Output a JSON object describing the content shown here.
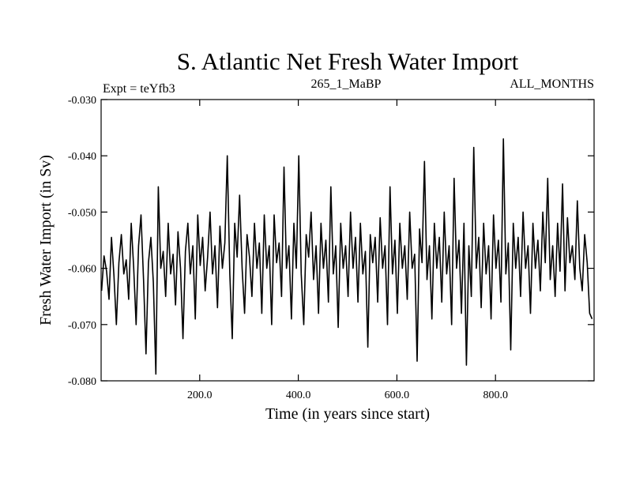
{
  "chart_data": {
    "type": "line",
    "title": "S. Atlantic Net Fresh Water Import",
    "header_left": "Expt = teYfb3",
    "header_center": "265_1_MaBP",
    "header_right": "ALL_MONTHS",
    "xlabel": "Time (in years since start)",
    "ylabel": "Fresh Water Import (in Sv)",
    "xlim": [
      0,
      1000
    ],
    "ylim": [
      -0.08,
      -0.03
    ],
    "xticks": [
      200,
      400,
      600,
      800
    ],
    "xtick_labels": [
      "200.0",
      "400.0",
      "600.0",
      "800.0"
    ],
    "yticks": [
      -0.08,
      -0.07,
      -0.06,
      -0.05,
      -0.04,
      -0.03
    ],
    "ytick_labels": [
      "-0.080",
      "-0.070",
      "-0.060",
      "-0.050",
      "-0.040",
      "-0.030"
    ],
    "series": [
      {
        "name": "Net Fresh Water Import",
        "color": "#000000",
        "x_start": 1,
        "x_step": 5,
        "values": [
          -0.064,
          -0.0578,
          -0.0605,
          -0.0655,
          -0.0545,
          -0.0612,
          -0.07,
          -0.059,
          -0.054,
          -0.061,
          -0.0585,
          -0.0655,
          -0.052,
          -0.0598,
          -0.07,
          -0.056,
          -0.0505,
          -0.062,
          -0.0752,
          -0.059,
          -0.0545,
          -0.0625,
          -0.0788,
          -0.0455,
          -0.06,
          -0.057,
          -0.065,
          -0.052,
          -0.061,
          -0.0575,
          -0.0665,
          -0.0535,
          -0.06,
          -0.0725,
          -0.057,
          -0.052,
          -0.061,
          -0.056,
          -0.069,
          -0.0505,
          -0.0595,
          -0.0545,
          -0.064,
          -0.058,
          -0.05,
          -0.061,
          -0.056,
          -0.067,
          -0.0525,
          -0.06,
          -0.0555,
          -0.04,
          -0.061,
          -0.0725,
          -0.052,
          -0.058,
          -0.047,
          -0.06,
          -0.068,
          -0.054,
          -0.058,
          -0.065,
          -0.052,
          -0.06,
          -0.0555,
          -0.068,
          -0.0505,
          -0.06,
          -0.056,
          -0.07,
          -0.0505,
          -0.059,
          -0.0555,
          -0.065,
          -0.042,
          -0.06,
          -0.056,
          -0.069,
          -0.052,
          -0.06,
          -0.04,
          -0.061,
          -0.07,
          -0.054,
          -0.058,
          -0.05,
          -0.062,
          -0.056,
          -0.068,
          -0.052,
          -0.06,
          -0.055,
          -0.066,
          -0.0455,
          -0.061,
          -0.056,
          -0.0705,
          -0.052,
          -0.06,
          -0.056,
          -0.065,
          -0.05,
          -0.06,
          -0.0545,
          -0.066,
          -0.052,
          -0.061,
          -0.057,
          -0.074,
          -0.054,
          -0.059,
          -0.0545,
          -0.066,
          -0.051,
          -0.06,
          -0.056,
          -0.07,
          -0.0455,
          -0.061,
          -0.055,
          -0.068,
          -0.052,
          -0.06,
          -0.056,
          -0.0655,
          -0.05,
          -0.06,
          -0.0575,
          -0.0765,
          -0.053,
          -0.059,
          -0.041,
          -0.062,
          -0.056,
          -0.069,
          -0.052,
          -0.06,
          -0.0545,
          -0.066,
          -0.05,
          -0.061,
          -0.056,
          -0.07,
          -0.044,
          -0.06,
          -0.055,
          -0.068,
          -0.052,
          -0.0772,
          -0.056,
          -0.065,
          -0.0385,
          -0.06,
          -0.0545,
          -0.067,
          -0.052,
          -0.061,
          -0.056,
          -0.069,
          -0.0505,
          -0.06,
          -0.055,
          -0.066,
          -0.037,
          -0.061,
          -0.0555,
          -0.0745,
          -0.052,
          -0.06,
          -0.0545,
          -0.065,
          -0.05,
          -0.06,
          -0.056,
          -0.068,
          -0.052,
          -0.06,
          -0.055,
          -0.064,
          -0.05,
          -0.059,
          -0.044,
          -0.062,
          -0.056,
          -0.065,
          -0.052,
          -0.0605,
          -0.045,
          -0.064,
          -0.051,
          -0.059,
          -0.056,
          -0.062,
          -0.048,
          -0.06,
          -0.064,
          -0.054,
          -0.059,
          -0.068,
          -0.069
        ]
      }
    ]
  }
}
